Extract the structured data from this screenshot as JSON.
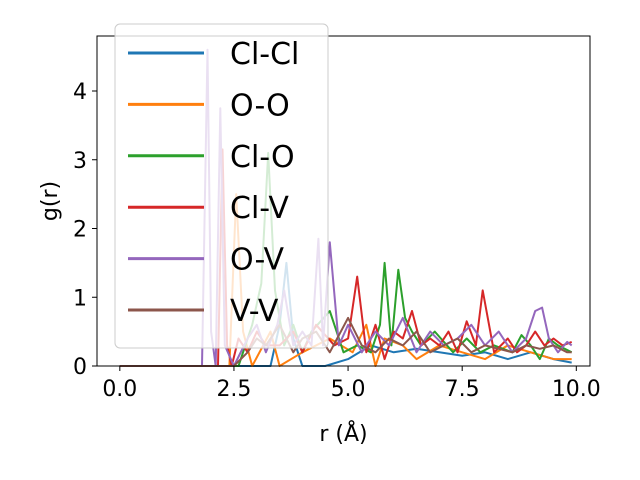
{
  "chart_data": {
    "type": "line",
    "xlabel": "r (Å)",
    "ylabel": "g(r)",
    "xlim": [
      -0.5,
      10.3
    ],
    "ylim": [
      0,
      4.8
    ],
    "xticks": [
      0.0,
      2.5,
      5.0,
      7.5,
      10.0
    ],
    "xtick_labels": [
      "0.0",
      "2.5",
      "5.0",
      "7.5",
      "10.0"
    ],
    "yticks": [
      0,
      1,
      2,
      3,
      4
    ],
    "ytick_labels": [
      "0",
      "1",
      "2",
      "3",
      "4"
    ],
    "grid": false,
    "legend_position": "upper-left",
    "series": [
      {
        "name": "Cl-Cl",
        "color": "#1f77b4",
        "x": [
          0,
          1.0,
          2.0,
          3.0,
          3.3,
          3.5,
          3.65,
          3.8,
          4.0,
          4.5,
          5.0,
          5.5,
          6.0,
          6.5,
          7.0,
          7.5,
          8.0,
          8.5,
          9.0,
          9.5,
          9.9
        ],
        "y": [
          0,
          0,
          0,
          0,
          0,
          0.6,
          1.5,
          0.4,
          0,
          0,
          0.1,
          0.3,
          0.2,
          0.25,
          0.2,
          0.15,
          0.2,
          0.1,
          0.2,
          0.1,
          0.05
        ]
      },
      {
        "name": "O-O",
        "color": "#ff7f0e",
        "x": [
          0,
          2.0,
          2.4,
          2.55,
          2.7,
          2.9,
          3.3,
          3.5,
          4.0,
          4.6,
          5.1,
          5.4,
          5.6,
          5.8,
          6.2,
          6.5,
          7.0,
          7.5,
          8.0,
          8.5,
          9.0,
          9.5,
          9.9
        ],
        "y": [
          0,
          0,
          0,
          2.5,
          0.5,
          0,
          0.5,
          0,
          0.2,
          0.4,
          0.2,
          0.6,
          0,
          0.4,
          0.3,
          0.1,
          0.3,
          0.2,
          0.1,
          0.3,
          0.2,
          0.1,
          0.1
        ]
      },
      {
        "name": "Cl-O",
        "color": "#2ca02c",
        "x": [
          0,
          2.6,
          2.9,
          3.1,
          3.25,
          3.4,
          3.6,
          3.8,
          4.0,
          4.2,
          4.6,
          4.9,
          5.2,
          5.5,
          5.7,
          5.8,
          5.95,
          6.1,
          6.25,
          6.4,
          6.6,
          6.9,
          7.3,
          7.6,
          7.9,
          8.2,
          8.6,
          8.8,
          9.0,
          9.2,
          9.4,
          9.6,
          9.9
        ],
        "y": [
          0,
          0,
          0.6,
          1.2,
          3.1,
          1.1,
          0.3,
          0.6,
          0.2,
          0.5,
          0.8,
          0.2,
          0.3,
          0.2,
          0.6,
          1.5,
          0.3,
          1.4,
          0.7,
          0.5,
          0.3,
          0.5,
          0.2,
          0.4,
          0.2,
          0.3,
          0.2,
          0.45,
          0.3,
          0.1,
          0.4,
          0.3,
          0.2
        ]
      },
      {
        "name": "Cl-V",
        "color": "#d62728",
        "x": [
          0,
          2.0,
          2.15,
          2.25,
          2.35,
          2.45,
          2.6,
          2.8,
          3.0,
          3.2,
          3.5,
          3.8,
          4.0,
          4.3,
          4.7,
          5.0,
          5.2,
          5.4,
          5.6,
          5.8,
          6.0,
          6.2,
          6.4,
          6.6,
          6.8,
          7.0,
          7.2,
          7.4,
          7.6,
          7.8,
          7.95,
          8.2,
          8.5,
          8.7,
          8.9,
          9.1,
          9.3,
          9.5,
          9.7,
          9.9
        ],
        "y": [
          0,
          0,
          0,
          3.15,
          0.3,
          0,
          0.4,
          0.2,
          0.5,
          0.3,
          0.3,
          0.5,
          0.2,
          0.6,
          0.3,
          0.4,
          1.3,
          0.2,
          0.6,
          0.1,
          0.5,
          0.4,
          0.8,
          0.3,
          0.4,
          0.3,
          0.5,
          0.2,
          0.65,
          0.3,
          1.1,
          0.2,
          0.4,
          0.2,
          0.3,
          0.5,
          0.3,
          0.4,
          0.3,
          0.35
        ]
      },
      {
        "name": "O-V",
        "color": "#9467bd",
        "x": [
          0,
          1.7,
          1.8,
          1.92,
          2.0,
          2.1,
          2.2,
          2.3,
          2.5,
          2.8,
          3.0,
          3.2,
          3.45,
          3.6,
          3.8,
          4.0,
          4.2,
          4.35,
          4.45,
          4.6,
          4.8,
          5.0,
          5.3,
          5.6,
          5.9,
          6.2,
          6.5,
          6.8,
          7.1,
          7.4,
          7.7,
          8.0,
          8.3,
          8.6,
          8.9,
          9.1,
          9.25,
          9.4,
          9.6,
          9.8,
          9.9
        ],
        "y": [
          0,
          0,
          0,
          4.6,
          0.5,
          0,
          3.75,
          0.3,
          0,
          0.4,
          0.6,
          0.2,
          0.6,
          1.1,
          0.3,
          0.5,
          0.3,
          1.85,
          0.3,
          1.8,
          0.3,
          0.6,
          0.2,
          0.5,
          0.3,
          0.7,
          0.2,
          0.5,
          0.3,
          0.4,
          0.6,
          0.3,
          0.5,
          0.2,
          0.4,
          0.8,
          0.85,
          0.4,
          0.2,
          0.35,
          0.3
        ]
      },
      {
        "name": "V-V",
        "color": "#8c564b",
        "x": [
          0,
          2.5,
          2.8,
          3.0,
          3.2,
          3.5,
          3.8,
          4.0,
          4.3,
          4.6,
          5.0,
          5.3,
          5.6,
          5.9,
          6.2,
          6.5,
          6.8,
          7.1,
          7.4,
          7.7,
          8.0,
          8.3,
          8.6,
          8.9,
          9.2,
          9.5,
          9.8,
          9.9
        ],
        "y": [
          0,
          0,
          0.2,
          0.4,
          0.3,
          0.6,
          0.2,
          0.4,
          0.5,
          0.2,
          0.7,
          0.3,
          0.2,
          0.4,
          0.3,
          0.5,
          0.2,
          0.3,
          0.4,
          0.2,
          0.3,
          0.25,
          0.2,
          0.3,
          0.25,
          0.3,
          0.2,
          0.2
        ]
      }
    ]
  }
}
